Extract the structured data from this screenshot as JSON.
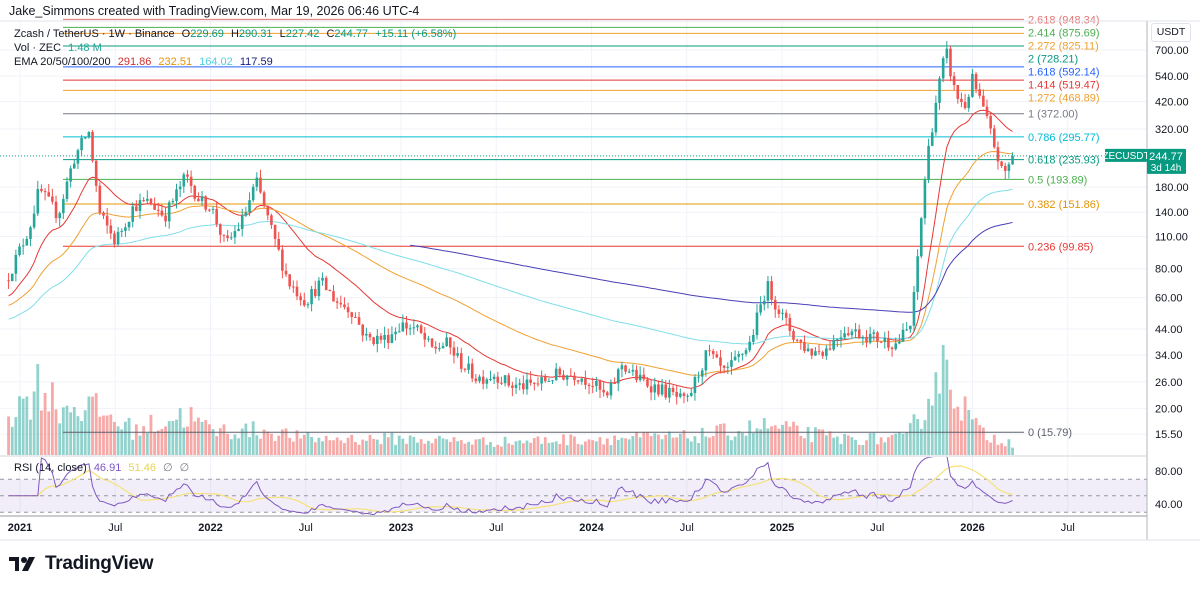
{
  "header": {
    "attribution": "Jake_Simmons created with TradingView.com, Mar 19, 2026 06:46 UTC-4"
  },
  "legend": {
    "symbol": "Zcash / TetherUS · 1W · Binance",
    "o_label": "O",
    "o": "229.69",
    "h_label": "H",
    "h": "290.31",
    "l_label": "L",
    "l": "227.42",
    "c_label": "C",
    "c": "244.77",
    "change": "+15.11 (+6.58%)",
    "vol_label": "Vol · ZEC",
    "vol": "1.48 M",
    "ema_label": "EMA 20/50/100/200",
    "ema20": "291.86",
    "ema50": "232.51",
    "ema100": "164.02",
    "ema200": "117.59",
    "rsi_label": "RSI (14, close)",
    "rsi": "46.91",
    "rsi_ma": "51.46",
    "rsi_extra1": "∅",
    "rsi_extra2": "∅"
  },
  "price_axis": {
    "currency": "USDT",
    "last_symbol": "ZECUSDT",
    "last_price": "244.77",
    "countdown": "3d 14h"
  },
  "logo": {
    "text": "TradingView"
  },
  "colors": {
    "up": "#26a69a",
    "down": "#ef5350",
    "ema20": "#e53935",
    "ema50": "#f0a030",
    "ema100": "#80deea",
    "ema200": "#4a3fb5",
    "rsi": "#7e57c2",
    "rsi_ma": "#f5e17a",
    "last": "#089981"
  },
  "chart_data": {
    "type": "candlestick",
    "title": "Zcash / TetherUS · 1W · Binance",
    "scale": "log",
    "ylim": [
      15.5,
      950
    ],
    "y_ticks": [
      "700.00",
      "540.00",
      "420.00",
      "320.00",
      "180.00",
      "140.00",
      "110.00",
      "80.00",
      "60.00",
      "44.00",
      "34.00",
      "26.00",
      "20.00",
      "15.50"
    ],
    "y_tick_values": [
      700,
      540,
      420,
      320,
      180,
      140,
      110,
      80,
      60,
      44,
      34,
      26,
      20,
      15.5
    ],
    "x_ticks": [
      {
        "label": "2021",
        "t": 2021.0
      },
      {
        "label": "Jul",
        "t": 2021.5
      },
      {
        "label": "2022",
        "t": 2022.0
      },
      {
        "label": "Jul",
        "t": 2022.5
      },
      {
        "label": "2023",
        "t": 2023.0
      },
      {
        "label": "Jul",
        "t": 2023.5
      },
      {
        "label": "2024",
        "t": 2024.0
      },
      {
        "label": "Jul",
        "t": 2024.5
      },
      {
        "label": "2025",
        "t": 2025.0
      },
      {
        "label": "Jul",
        "t": 2025.5
      },
      {
        "label": "2026",
        "t": 2026.0
      },
      {
        "label": "Jul",
        "t": 2026.5
      }
    ],
    "close_anchors": [
      [
        2020.94,
        75
      ],
      [
        2021.05,
        120
      ],
      [
        2021.1,
        175
      ],
      [
        2021.2,
        136
      ],
      [
        2021.28,
        235
      ],
      [
        2021.36,
        315
      ],
      [
        2021.42,
        136
      ],
      [
        2021.5,
        105
      ],
      [
        2021.6,
        150
      ],
      [
        2021.68,
        155
      ],
      [
        2021.76,
        135
      ],
      [
        2021.87,
        200
      ],
      [
        2021.95,
        155
      ],
      [
        2022.0,
        150
      ],
      [
        2022.08,
        100
      ],
      [
        2022.17,
        130
      ],
      [
        2022.24,
        190
      ],
      [
        2022.33,
        110
      ],
      [
        2022.41,
        70
      ],
      [
        2022.5,
        58
      ],
      [
        2022.58,
        70
      ],
      [
        2022.66,
        58
      ],
      [
        2022.74,
        53
      ],
      [
        2022.82,
        40
      ],
      [
        2022.92,
        40
      ],
      [
        2023.0,
        46
      ],
      [
        2023.08,
        44
      ],
      [
        2023.16,
        36
      ],
      [
        2023.24,
        38
      ],
      [
        2023.32,
        31
      ],
      [
        2023.4,
        27
      ],
      [
        2023.5,
        28
      ],
      [
        2023.58,
        25
      ],
      [
        2023.66,
        25
      ],
      [
        2023.74,
        26
      ],
      [
        2023.82,
        28
      ],
      [
        2023.92,
        28
      ],
      [
        2024.0,
        26
      ],
      [
        2024.08,
        22
      ],
      [
        2024.16,
        31
      ],
      [
        2024.24,
        27
      ],
      [
        2024.32,
        25
      ],
      [
        2024.42,
        23
      ],
      [
        2024.5,
        21
      ],
      [
        2024.55,
        27
      ],
      [
        2024.61,
        35
      ],
      [
        2024.7,
        28
      ],
      [
        2024.83,
        38
      ],
      [
        2024.92,
        68
      ],
      [
        2025.0,
        50
      ],
      [
        2025.07,
        40
      ],
      [
        2025.15,
        35
      ],
      [
        2025.23,
        36
      ],
      [
        2025.33,
        44
      ],
      [
        2025.41,
        42
      ],
      [
        2025.5,
        40
      ],
      [
        2025.6,
        38
      ],
      [
        2025.68,
        46
      ],
      [
        2025.73,
        130
      ],
      [
        2025.76,
        235
      ],
      [
        2025.81,
        430
      ],
      [
        2025.86,
        700
      ],
      [
        2025.91,
        450
      ],
      [
        2025.96,
        400
      ],
      [
        2026.0,
        520
      ],
      [
        2026.06,
        380
      ],
      [
        2026.11,
        280
      ],
      [
        2026.16,
        200
      ],
      [
        2026.215,
        244.77
      ]
    ],
    "volume_anchors_millions": [
      [
        2020.94,
        5
      ],
      [
        2021.05,
        7
      ],
      [
        2021.1,
        9
      ],
      [
        2021.2,
        6
      ],
      [
        2021.35,
        6
      ],
      [
        2021.45,
        5
      ],
      [
        2021.6,
        3
      ],
      [
        2021.87,
        5
      ],
      [
        2022.0,
        3
      ],
      [
        2022.3,
        3
      ],
      [
        2022.5,
        2
      ],
      [
        2023.0,
        2
      ],
      [
        2023.5,
        1.6
      ],
      [
        2024.0,
        2
      ],
      [
        2024.5,
        2.2
      ],
      [
        2024.92,
        3.5
      ],
      [
        2025.3,
        2
      ],
      [
        2025.65,
        2
      ],
      [
        2025.75,
        6
      ],
      [
        2025.85,
        12
      ],
      [
        2025.95,
        6
      ],
      [
        2026.05,
        2.5
      ],
      [
        2026.215,
        1.48
      ]
    ],
    "ema_periods": [
      20,
      50,
      100,
      200
    ],
    "ema_initial": [
      60,
      55,
      48,
      90
    ],
    "rsi": {
      "period": 14,
      "ma_period": 14,
      "upper": 70,
      "middle": 50,
      "lower": 30,
      "ticks": [
        "80.00",
        "40.00"
      ],
      "tick_values": [
        80,
        40
      ]
    },
    "fib_levels": [
      {
        "level": "2.618",
        "price": 948.34,
        "label": "2.618 (948.34)",
        "color": "#e57373"
      },
      {
        "level": "2.414",
        "price": 875.69,
        "label": "2.414 (875.69)",
        "color": "#4caf50"
      },
      {
        "level": "2.272",
        "price": 825.11,
        "label": "2.272 (825.11)",
        "color": "#f0a030"
      },
      {
        "level": "2",
        "price": 728.21,
        "label": "2 (728.21)",
        "color": "#089981"
      },
      {
        "level": "1.618",
        "price": 592.14,
        "label": "1.618 (592.14)",
        "color": "#2962ff"
      },
      {
        "level": "1.414",
        "price": 519.47,
        "label": "1.414 (519.47)",
        "color": "#e53935"
      },
      {
        "level": "1.272",
        "price": 468.89,
        "label": "1.272 (468.89)",
        "color": "#f0a030"
      },
      {
        "level": "1",
        "price": 372.0,
        "label": "1 (372.00)",
        "color": "#787b86"
      },
      {
        "level": "0.786",
        "price": 295.77,
        "label": "0.786 (295.77)",
        "color": "#00bcd4"
      },
      {
        "level": "0.618",
        "price": 235.93,
        "label": "0.618 (235.93)",
        "color": "#089981"
      },
      {
        "level": "0.5",
        "price": 193.89,
        "label": "0.5 (193.89)",
        "color": "#4caf50"
      },
      {
        "level": "0.382",
        "price": 151.86,
        "label": "0.382 (151.86)",
        "color": "#e69500"
      },
      {
        "level": "0.236",
        "price": 99.85,
        "label": "0.236 (99.85)",
        "color": "#e53935"
      },
      {
        "level": "0",
        "price": 15.79,
        "label": "0 (15.79)",
        "color": "#5d606b"
      }
    ],
    "last_price": 244.77
  }
}
